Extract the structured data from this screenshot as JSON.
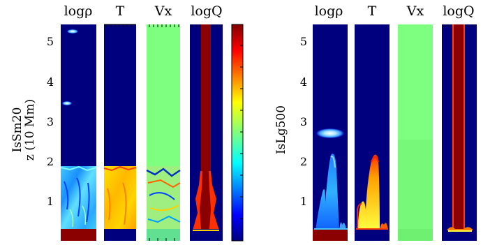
{
  "left_figure": {
    "panel_titles": [
      "logρ",
      "T",
      "Vx",
      "logQ"
    ],
    "ylabel_lines": [
      "IsSm20",
      "z (10 Mm)"
    ],
    "yticks": [
      "1",
      "2",
      "3",
      "4",
      "5"
    ]
  },
  "right_figure": {
    "panel_titles": [
      "logρ",
      "T",
      "Vx",
      "logQ"
    ],
    "ylabel_lines": [
      "IsLg500"
    ],
    "yticks": [
      "1",
      "2",
      "3",
      "4",
      "5"
    ]
  },
  "colorbar": {
    "colormap": "jet",
    "colors": [
      "#00007f",
      "#0000ff",
      "#007fff",
      "#00ffff",
      "#7fff7f",
      "#ffff00",
      "#ff7f00",
      "#ff0000",
      "#7f0000"
    ]
  }
}
